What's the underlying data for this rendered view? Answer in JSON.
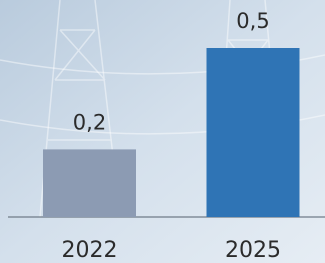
{
  "chart_data": {
    "type": "bar",
    "categories": [
      "2022",
      "2025"
    ],
    "values": [
      0.2,
      0.5
    ],
    "value_labels": [
      "0,2",
      "0,5"
    ],
    "colors": [
      "#8c9bb3",
      "#2f74b5"
    ]
  }
}
